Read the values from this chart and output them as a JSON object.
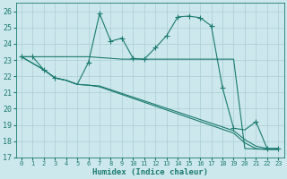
{
  "xlabel": "Humidex (Indice chaleur)",
  "xlim": [
    -0.5,
    23.5
  ],
  "ylim": [
    17,
    26.5
  ],
  "yticks": [
    17,
    18,
    19,
    20,
    21,
    22,
    23,
    24,
    25,
    26
  ],
  "xticks": [
    0,
    1,
    2,
    3,
    4,
    5,
    6,
    7,
    8,
    9,
    10,
    11,
    12,
    13,
    14,
    15,
    16,
    17,
    18,
    19,
    20,
    21,
    22,
    23
  ],
  "bg_color": "#cde8ed",
  "grid_color": "#aacdd4",
  "line_color": "#1a7a6e",
  "line1_x": [
    0,
    1,
    2,
    3,
    4,
    5,
    6,
    7,
    8,
    9,
    10,
    11,
    12,
    13,
    14,
    15,
    16,
    17,
    18,
    19,
    20,
    21,
    22,
    23
  ],
  "line1_y": [
    23.2,
    23.2,
    22.4,
    21.9,
    21.75,
    21.5,
    22.85,
    25.85,
    24.15,
    24.35,
    23.1,
    23.05,
    23.75,
    24.5,
    25.65,
    25.7,
    25.6,
    25.1,
    21.3,
    18.8,
    18.7,
    19.2,
    17.55,
    17.55
  ],
  "line1_markers_x": [
    0,
    1,
    2,
    3,
    6,
    7,
    8,
    9,
    10,
    11,
    12,
    13,
    14,
    15,
    16,
    17,
    18,
    19,
    21,
    22,
    23
  ],
  "line1_markers_y": [
    23.2,
    23.2,
    22.4,
    21.9,
    22.85,
    25.85,
    24.15,
    24.35,
    23.1,
    23.05,
    23.75,
    24.5,
    25.65,
    25.7,
    25.6,
    25.1,
    21.3,
    18.8,
    19.2,
    17.55,
    17.55
  ],
  "line2_x": [
    0,
    2,
    3,
    4,
    5,
    6,
    7,
    19,
    20,
    21,
    22,
    23
  ],
  "line2_y": [
    23.2,
    22.4,
    21.9,
    21.75,
    21.5,
    21.45,
    21.4,
    18.65,
    18.1,
    17.7,
    17.55,
    17.55
  ],
  "line3_x": [
    0,
    2,
    3,
    4,
    5,
    6,
    7,
    19,
    20,
    21,
    22,
    23
  ],
  "line3_y": [
    23.2,
    22.4,
    21.9,
    21.75,
    21.5,
    21.45,
    21.35,
    18.5,
    17.9,
    17.55,
    17.5,
    17.5
  ],
  "line4_x": [
    0,
    1,
    5,
    6,
    9,
    10,
    19,
    20,
    22,
    23
  ],
  "line4_y": [
    23.2,
    23.2,
    23.2,
    23.2,
    23.05,
    23.05,
    23.05,
    17.55,
    17.5,
    17.5
  ]
}
